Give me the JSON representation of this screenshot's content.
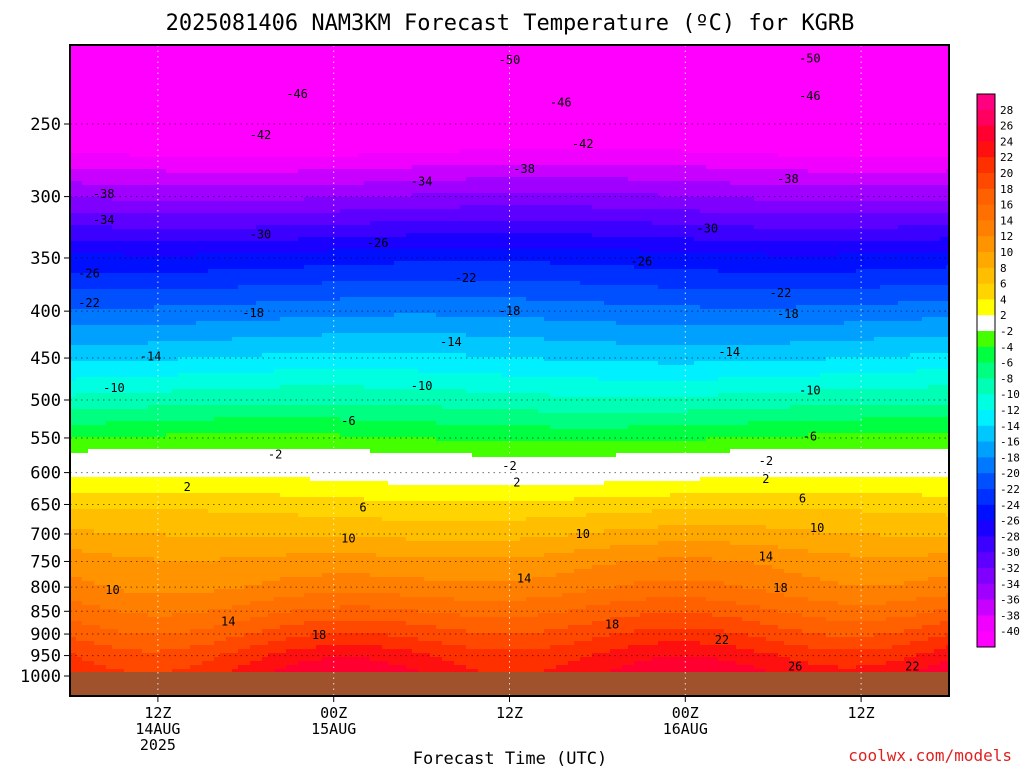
{
  "chart_data": {
    "type": "heatmap",
    "title": "2025081406 NAM3KM Forecast Temperature (ºC) for KGRB",
    "xlabel": "Forecast Time (UTC)",
    "ylabel": "",
    "credit": "coolwx.com/models",
    "y_scale": "log-pressure (hPa), inverted",
    "y_ticks": [
      250,
      300,
      350,
      400,
      450,
      500,
      550,
      600,
      650,
      700,
      750,
      800,
      850,
      900,
      950,
      1000
    ],
    "y_range": [
      1000,
      200
    ],
    "x_range_hours": [
      0,
      60
    ],
    "x_ticks": [
      {
        "hour": 6,
        "lines": [
          "12Z",
          "14AUG",
          "2025"
        ]
      },
      {
        "hour": 18,
        "lines": [
          "00Z",
          "15AUG"
        ]
      },
      {
        "hour": 30,
        "lines": [
          "12Z"
        ]
      },
      {
        "hour": 42,
        "lines": [
          "00Z",
          "16AUG"
        ]
      },
      {
        "hour": 54,
        "lines": [
          "12Z"
        ]
      }
    ],
    "colorbar": {
      "labels": [
        28,
        26,
        24,
        22,
        20,
        18,
        16,
        14,
        12,
        10,
        8,
        6,
        4,
        2,
        -2,
        -4,
        -6,
        -8,
        -10,
        -12,
        -14,
        -16,
        -18,
        -20,
        -22,
        -24,
        -26,
        -28,
        -30,
        -32,
        -34,
        -36,
        -38,
        -40
      ],
      "colors": [
        "#ff0080",
        "#ff0060",
        "#ff0030",
        "#ff1010",
        "#ff3000",
        "#ff4800",
        "#ff6000",
        "#ff7000",
        "#ff8000",
        "#ff9400",
        "#ffa800",
        "#ffbe00",
        "#ffd400",
        "#ffff00",
        "#ffffff",
        "#44ff00",
        "#00ff40",
        "#00ff80",
        "#00ffb4",
        "#00ffe0",
        "#00f0ff",
        "#00c8ff",
        "#00a0ff",
        "#0078ff",
        "#0050ff",
        "#0030ff",
        "#0010ff",
        "#1a00ff",
        "#3c00ff",
        "#5e00ff",
        "#8000ff",
        "#a000ff",
        "#c800ff",
        "#f000ff",
        "#ff00ff"
      ]
    },
    "temperature_profile": [
      {
        "pressure": 1000,
        "temp": 24
      },
      {
        "pressure": 950,
        "temp": 22
      },
      {
        "pressure": 900,
        "temp": 19
      },
      {
        "pressure": 850,
        "temp": 16
      },
      {
        "pressure": 800,
        "temp": 13
      },
      {
        "pressure": 750,
        "temp": 11
      },
      {
        "pressure": 700,
        "temp": 8
      },
      {
        "pressure": 650,
        "temp": 5
      },
      {
        "pressure": 600,
        "temp": 1
      },
      {
        "pressure": 550,
        "temp": -4
      },
      {
        "pressure": 500,
        "temp": -9
      },
      {
        "pressure": 450,
        "temp": -14
      },
      {
        "pressure": 400,
        "temp": -19
      },
      {
        "pressure": 350,
        "temp": -25
      },
      {
        "pressure": 300,
        "temp": -34
      },
      {
        "pressure": 250,
        "temp": -44
      },
      {
        "pressure": 200,
        "temp": -52
      }
    ],
    "contour_labels": [
      {
        "value": "-50",
        "hour": 30,
        "pressure": 213
      },
      {
        "value": "-50",
        "hour": 50.5,
        "pressure": 212
      },
      {
        "value": "-46",
        "hour": 15.5,
        "pressure": 232
      },
      {
        "value": "-46",
        "hour": 33.5,
        "pressure": 237
      },
      {
        "value": "-46",
        "hour": 50.5,
        "pressure": 233
      },
      {
        "value": "-42",
        "hour": 13,
        "pressure": 257
      },
      {
        "value": "-42",
        "hour": 35,
        "pressure": 263
      },
      {
        "value": "-38",
        "hour": 31,
        "pressure": 280
      },
      {
        "value": "-38",
        "hour": 49,
        "pressure": 287
      },
      {
        "value": "-38",
        "hour": 2.3,
        "pressure": 298
      },
      {
        "value": "-34",
        "hour": 24,
        "pressure": 289
      },
      {
        "value": "-34",
        "hour": 2.3,
        "pressure": 318
      },
      {
        "value": "-30",
        "hour": 13,
        "pressure": 330
      },
      {
        "value": "-30",
        "hour": 43.5,
        "pressure": 325
      },
      {
        "value": "-26",
        "hour": 21,
        "pressure": 337
      },
      {
        "value": "-26",
        "hour": 39,
        "pressure": 353
      },
      {
        "value": "-26",
        "hour": 1.3,
        "pressure": 364
      },
      {
        "value": "-22",
        "hour": 27,
        "pressure": 368
      },
      {
        "value": "-22",
        "hour": 48.5,
        "pressure": 382
      },
      {
        "value": "-22",
        "hour": 1.3,
        "pressure": 392
      },
      {
        "value": "-18",
        "hour": 12.5,
        "pressure": 402
      },
      {
        "value": "-18",
        "hour": 30,
        "pressure": 400
      },
      {
        "value": "-18",
        "hour": 49,
        "pressure": 403
      },
      {
        "value": "-14",
        "hour": 5.5,
        "pressure": 448
      },
      {
        "value": "-14",
        "hour": 26,
        "pressure": 432
      },
      {
        "value": "-14",
        "hour": 45,
        "pressure": 443
      },
      {
        "value": "-10",
        "hour": 3,
        "pressure": 485
      },
      {
        "value": "-10",
        "hour": 24,
        "pressure": 483
      },
      {
        "value": "-10",
        "hour": 50.5,
        "pressure": 488
      },
      {
        "value": "-6",
        "hour": 19,
        "pressure": 527
      },
      {
        "value": "-6",
        "hour": 50.5,
        "pressure": 548
      },
      {
        "value": "-2",
        "hour": 14,
        "pressure": 573
      },
      {
        "value": "-2",
        "hour": 30,
        "pressure": 590
      },
      {
        "value": "-2",
        "hour": 47.5,
        "pressure": 583
      },
      {
        "value": "2",
        "hour": 8,
        "pressure": 622
      },
      {
        "value": "2",
        "hour": 30.5,
        "pressure": 615
      },
      {
        "value": "2",
        "hour": 47.5,
        "pressure": 610
      },
      {
        "value": "6",
        "hour": 20,
        "pressure": 655
      },
      {
        "value": "6",
        "hour": 50,
        "pressure": 640
      },
      {
        "value": "10",
        "hour": 19,
        "pressure": 708
      },
      {
        "value": "10",
        "hour": 35,
        "pressure": 700
      },
      {
        "value": "10",
        "hour": 51,
        "pressure": 690
      },
      {
        "value": "10",
        "hour": 2.9,
        "pressure": 806
      },
      {
        "value": "14",
        "hour": 10.8,
        "pressure": 872
      },
      {
        "value": "14",
        "hour": 31,
        "pressure": 783
      },
      {
        "value": "14",
        "hour": 47.5,
        "pressure": 741
      },
      {
        "value": "18",
        "hour": 17,
        "pressure": 902
      },
      {
        "value": "18",
        "hour": 37,
        "pressure": 879
      },
      {
        "value": "18",
        "hour": 48.5,
        "pressure": 802
      },
      {
        "value": "22",
        "hour": 44.5,
        "pressure": 914
      },
      {
        "value": "22",
        "hour": 57.5,
        "pressure": 976
      },
      {
        "value": "26",
        "hour": 49.5,
        "pressure": 976
      }
    ]
  }
}
